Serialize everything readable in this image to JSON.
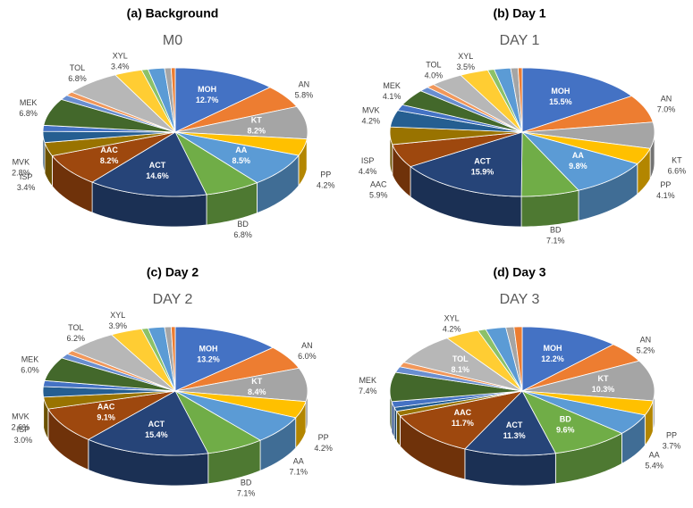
{
  "chart_data": [
    {
      "type": "pie",
      "title": "(a) Background",
      "subtitle": "M0",
      "categories": [
        "MOH",
        "AN",
        "KT",
        "PP",
        "AA",
        "BD",
        "ACT",
        "AAC",
        "ISP",
        "MVK",
        null,
        "MEK",
        null,
        null,
        "TOL",
        "XYL",
        null,
        null,
        null,
        null
      ],
      "values": [
        12.7,
        5.8,
        8.2,
        4.2,
        8.5,
        6.8,
        14.6,
        8.2,
        3.4,
        2.8,
        1.5,
        6.8,
        1.2,
        1.0,
        6.8,
        3.4,
        0.8,
        2.0,
        0.8,
        0.5
      ],
      "value_labels": [
        "12.7%",
        "5.8%",
        "8.2%",
        "4.2%",
        "8.5%",
        "6.8%",
        "14.6%",
        "8.2%",
        "3.4%",
        "2.8%",
        null,
        "6.8%",
        null,
        null,
        "6.8%",
        "3.4%",
        null,
        null,
        null,
        null
      ],
      "colors": [
        "#4472c4",
        "#ed7d31",
        "#a5a5a5",
        "#ffc000",
        "#5b9bd5",
        "#70ad47",
        "#264478",
        "#9e480e",
        "#997300",
        "#255e91",
        "#4472c4",
        "#43682b",
        "#698ed0",
        "#f1975a",
        "#b7b7b7",
        "#ffcd33",
        "#8cc168",
        "#5b9bd5",
        "#a5a5a5",
        "#ed7d31"
      ]
    },
    {
      "type": "pie",
      "title": "(b) Day 1",
      "subtitle": "DAY 1",
      "categories": [
        "MOH",
        "AN",
        "KT",
        "PP",
        "AA",
        "BD",
        "ACT",
        "AAC",
        "ISP",
        "MVK",
        null,
        "MEK",
        null,
        null,
        "TOL",
        "XYL",
        null,
        null,
        null,
        null
      ],
      "values": [
        15.5,
        7.0,
        6.6,
        4.1,
        9.8,
        7.1,
        15.9,
        5.9,
        4.4,
        4.2,
        1.5,
        4.1,
        1.2,
        1.0,
        4.0,
        3.5,
        0.8,
        2.0,
        0.9,
        0.5
      ],
      "value_labels": [
        "15.5%",
        "7.0%",
        "6.6%",
        "4.1%",
        "9.8%",
        "7.1%",
        "15.9%",
        "5.9%",
        "4.4%",
        "4.2%",
        null,
        "4.1%",
        null,
        null,
        "4.0%",
        "3.5%",
        null,
        null,
        null,
        null
      ],
      "colors": [
        "#4472c4",
        "#ed7d31",
        "#a5a5a5",
        "#ffc000",
        "#5b9bd5",
        "#70ad47",
        "#264478",
        "#9e480e",
        "#997300",
        "#255e91",
        "#4472c4",
        "#43682b",
        "#698ed0",
        "#f1975a",
        "#b7b7b7",
        "#ffcd33",
        "#8cc168",
        "#5b9bd5",
        "#a5a5a5",
        "#ed7d31"
      ]
    },
    {
      "type": "pie",
      "title": "(c) Day 2",
      "subtitle": "DAY 2",
      "categories": [
        "MOH",
        "AN",
        "KT",
        "PP",
        "AA",
        "BD",
        "ACT",
        "AAC",
        "ISP",
        "MVK",
        null,
        "MEK",
        null,
        null,
        "TOL",
        "XYL",
        null,
        null,
        null,
        null
      ],
      "values": [
        13.2,
        6.0,
        8.4,
        4.2,
        7.1,
        7.1,
        15.4,
        9.1,
        3.0,
        2.6,
        1.5,
        6.0,
        1.2,
        1.0,
        6.2,
        3.9,
        0.8,
        2.0,
        0.8,
        0.5
      ],
      "value_labels": [
        "13.2%",
        "6.0%",
        "8.4%",
        "4.2%",
        "7.1%",
        "7.1%",
        "15.4%",
        "9.1%",
        "3.0%",
        "2.6%",
        null,
        "6.0%",
        null,
        null,
        "6.2%",
        "3.9%",
        null,
        null,
        null,
        null
      ],
      "colors": [
        "#4472c4",
        "#ed7d31",
        "#a5a5a5",
        "#ffc000",
        "#5b9bd5",
        "#70ad47",
        "#264478",
        "#9e480e",
        "#997300",
        "#255e91",
        "#4472c4",
        "#43682b",
        "#698ed0",
        "#f1975a",
        "#b7b7b7",
        "#ffcd33",
        "#8cc168",
        "#5b9bd5",
        "#a5a5a5",
        "#ed7d31"
      ]
    },
    {
      "type": "pie",
      "title": "(d) Day 3",
      "subtitle": "DAY 3",
      "categories": [
        "MOH",
        "AN",
        "KT",
        "PP",
        "AA",
        "BD",
        "ACT",
        "AAC",
        null,
        null,
        null,
        "MEK",
        null,
        null,
        "TOL",
        "XYL",
        null,
        null,
        null,
        null
      ],
      "values": [
        12.2,
        5.2,
        10.3,
        3.7,
        5.4,
        9.6,
        11.3,
        11.7,
        1.2,
        1.0,
        1.5,
        7.4,
        1.5,
        1.2,
        8.1,
        4.2,
        1.0,
        2.5,
        1.0,
        1.0
      ],
      "value_labels": [
        "12.2%",
        "5.2%",
        "10.3%",
        "3.7%",
        "5.4%",
        "9.6%",
        "11.3%",
        "11.7%",
        null,
        null,
        null,
        "7.4%",
        null,
        null,
        "8.1%",
        "4.2%",
        null,
        null,
        null,
        null
      ],
      "colors": [
        "#4472c4",
        "#ed7d31",
        "#a5a5a5",
        "#ffc000",
        "#5b9bd5",
        "#70ad47",
        "#264478",
        "#9e480e",
        "#997300",
        "#255e91",
        "#4472c4",
        "#43682b",
        "#698ed0",
        "#f1975a",
        "#b7b7b7",
        "#ffcd33",
        "#8cc168",
        "#5b9bd5",
        "#a5a5a5",
        "#ed7d31"
      ]
    }
  ]
}
